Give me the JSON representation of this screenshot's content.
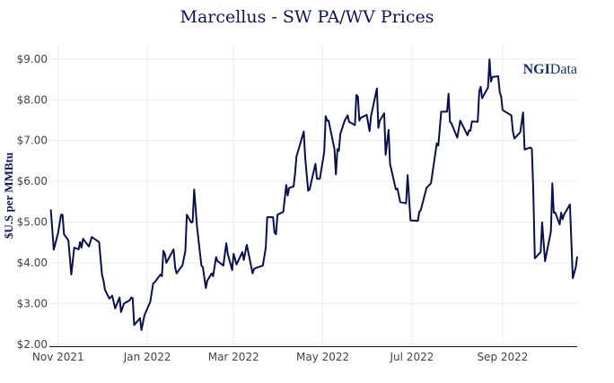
{
  "chart_data": {
    "type": "line",
    "title": "Marcellus - SW PA/WV Prices",
    "xlabel": "",
    "ylabel": "$U.S per MMBtu",
    "logo": "NGIData",
    "xlim": [
      "2021-10-26",
      "2022-10-22"
    ],
    "ylim": [
      1.94,
      9.35
    ],
    "grid": true,
    "line_color": "#0b0f4a",
    "x_ticks": [
      {
        "date": "2021-11-01",
        "label": "Nov 2021"
      },
      {
        "date": "2022-01-01",
        "label": "Jan 2022"
      },
      {
        "date": "2022-03-01",
        "label": "Mar 2022"
      },
      {
        "date": "2022-05-01",
        "label": "May 2022"
      },
      {
        "date": "2022-07-01",
        "label": "Jul 2022"
      },
      {
        "date": "2022-09-01",
        "label": "Sep 2022"
      }
    ],
    "y_ticks": [
      {
        "value": 2,
        "label": "$2.00"
      },
      {
        "value": 3,
        "label": "$3.00"
      },
      {
        "value": 4,
        "label": "$4.00"
      },
      {
        "value": 5,
        "label": "$5.00"
      },
      {
        "value": 6,
        "label": "$6.00"
      },
      {
        "value": 7,
        "label": "$7.00"
      },
      {
        "value": 8,
        "label": "$8.00"
      },
      {
        "value": 9,
        "label": "$9.00"
      }
    ],
    "series": [
      {
        "x": [
          "2021-10-27",
          "2021-10-29",
          "2021-11-01",
          "2021-11-03",
          "2021-11-04",
          "2021-11-05",
          "2021-11-08",
          "2021-11-10",
          "2021-11-12",
          "2021-11-15",
          "2021-11-16",
          "2021-11-17",
          "2021-11-18",
          "2021-11-22",
          "2021-11-24",
          "2021-11-29",
          "2021-12-01",
          "2021-12-02",
          "2021-12-03",
          "2021-12-06",
          "2021-12-08",
          "2021-12-10",
          "2021-12-13",
          "2021-12-14",
          "2021-12-16",
          "2021-12-20",
          "2021-12-21",
          "2021-12-22",
          "2021-12-23",
          "2021-12-27",
          "2021-12-28",
          "2021-12-30",
          "2022-01-03",
          "2022-01-05",
          "2022-01-06",
          "2022-01-10",
          "2022-01-11",
          "2022-01-12",
          "2022-01-13",
          "2022-01-14",
          "2022-01-19",
          "2022-01-20",
          "2022-01-21",
          "2022-01-24",
          "2022-01-25",
          "2022-01-27",
          "2022-01-28",
          "2022-01-31",
          "2022-02-01",
          "2022-02-02",
          "2022-02-04",
          "2022-02-07",
          "2022-02-08",
          "2022-02-10",
          "2022-02-11",
          "2022-02-14",
          "2022-02-15",
          "2022-02-17",
          "2022-02-18",
          "2022-02-22",
          "2022-02-24",
          "2022-02-25",
          "2022-02-28",
          "2022-03-01",
          "2022-03-03",
          "2022-03-07",
          "2022-03-08",
          "2022-03-10",
          "2022-03-14",
          "2022-03-15",
          "2022-03-16",
          "2022-03-21",
          "2022-03-23",
          "2022-03-24",
          "2022-03-28",
          "2022-03-29",
          "2022-03-30",
          "2022-03-31",
          "2022-04-04",
          "2022-04-06",
          "2022-04-07",
          "2022-04-08",
          "2022-04-11",
          "2022-04-12",
          "2022-04-13",
          "2022-04-18",
          "2022-04-19",
          "2022-04-21",
          "2022-04-22",
          "2022-04-26",
          "2022-04-27",
          "2022-04-29",
          "2022-05-02",
          "2022-05-03",
          "2022-05-04",
          "2022-05-05",
          "2022-05-06",
          "2022-05-09",
          "2022-05-10",
          "2022-05-11",
          "2022-05-12",
          "2022-05-13",
          "2022-05-16",
          "2022-05-18",
          "2022-05-19",
          "2022-05-23",
          "2022-05-24",
          "2022-05-25",
          "2022-05-26",
          "2022-05-27",
          "2022-05-31",
          "2022-06-02",
          "2022-06-03",
          "2022-06-07",
          "2022-06-08",
          "2022-06-09",
          "2022-06-12",
          "2022-06-13",
          "2022-06-15",
          "2022-06-16",
          "2022-06-20",
          "2022-06-21",
          "2022-06-23",
          "2022-06-27",
          "2022-06-28",
          "2022-06-30",
          "2022-07-05",
          "2022-07-06",
          "2022-07-07",
          "2022-07-11",
          "2022-07-12",
          "2022-07-14",
          "2022-07-18",
          "2022-07-19",
          "2022-07-21",
          "2022-07-25",
          "2022-07-26",
          "2022-07-27",
          "2022-07-28",
          "2022-08-01",
          "2022-08-03",
          "2022-08-08",
          "2022-08-09",
          "2022-08-10",
          "2022-08-11",
          "2022-08-15",
          "2022-08-16",
          "2022-08-17",
          "2022-08-18",
          "2022-08-22",
          "2022-08-23",
          "2022-08-24",
          "2022-08-25",
          "2022-08-29",
          "2022-08-30",
          "2022-08-31",
          "2022-09-01",
          "2022-09-06",
          "2022-09-07",
          "2022-09-08",
          "2022-09-09",
          "2022-09-13",
          "2022-09-15",
          "2022-09-16",
          "2022-09-20",
          "2022-09-21",
          "2022-09-22",
          "2022-09-23",
          "2022-09-27",
          "2022-09-28",
          "2022-09-30",
          "2022-10-04",
          "2022-10-05",
          "2022-10-06",
          "2022-10-07",
          "2022-10-10",
          "2022-10-11",
          "2022-10-12",
          "2022-10-13",
          "2022-10-17",
          "2022-10-19",
          "2022-10-21",
          "2022-10-22"
        ],
        "values": [
          5.31,
          4.32,
          4.74,
          5.18,
          5.18,
          4.7,
          4.55,
          3.71,
          4.37,
          4.33,
          4.51,
          4.37,
          4.59,
          4.4,
          4.63,
          4.51,
          3.71,
          3.56,
          3.34,
          3.12,
          3.19,
          2.88,
          3.15,
          2.79,
          3.0,
          3.08,
          3.15,
          3.13,
          2.47,
          2.64,
          2.35,
          2.71,
          3.04,
          3.49,
          3.52,
          3.71,
          3.67,
          4.29,
          4.22,
          4.0,
          4.33,
          3.89,
          3.74,
          3.89,
          3.93,
          4.29,
          5.18,
          4.99,
          5.0,
          5.8,
          4.88,
          3.93,
          3.89,
          3.38,
          3.56,
          3.74,
          3.67,
          4.14,
          4.04,
          3.93,
          4.48,
          4.22,
          3.82,
          4.22,
          3.96,
          4.26,
          4.07,
          4.44,
          3.74,
          3.85,
          3.87,
          3.93,
          4.37,
          5.12,
          5.12,
          4.74,
          4.7,
          5.18,
          5.25,
          5.91,
          5.65,
          5.84,
          5.87,
          6.17,
          6.61,
          7.22,
          6.58,
          5.77,
          5.8,
          6.43,
          6.06,
          6.06,
          6.72,
          7.6,
          7.49,
          7.49,
          7.31,
          6.79,
          6.17,
          6.79,
          6.75,
          7.16,
          7.49,
          7.62,
          7.46,
          7.38,
          8.12,
          8.08,
          7.49,
          7.56,
          7.63,
          7.23,
          7.6,
          8.28,
          7.31,
          7.49,
          7.67,
          6.65,
          7.26,
          6.43,
          5.8,
          5.82,
          5.49,
          5.46,
          6.15,
          5.04,
          5.03,
          5.25,
          5.29,
          5.84,
          5.88,
          5.95,
          6.93,
          6.88,
          7.71,
          7.71,
          8.15,
          7.46,
          7.42,
          7.07,
          7.49,
          7.13,
          7.25,
          7.24,
          7.47,
          7.46,
          8.21,
          8.32,
          8.04,
          8.3,
          8.99,
          8.45,
          8.56,
          8.58,
          8.19,
          8.08,
          7.75,
          7.64,
          7.62,
          7.24,
          7.05,
          7.2,
          7.69,
          6.78,
          6.83,
          6.79,
          5.76,
          4.11,
          4.26,
          4.99,
          4.04,
          4.77,
          5.95,
          5.23,
          5.23,
          4.94,
          5.23,
          5.07,
          5.18,
          5.43,
          3.62,
          3.89,
          4.15
        ]
      }
    ]
  }
}
